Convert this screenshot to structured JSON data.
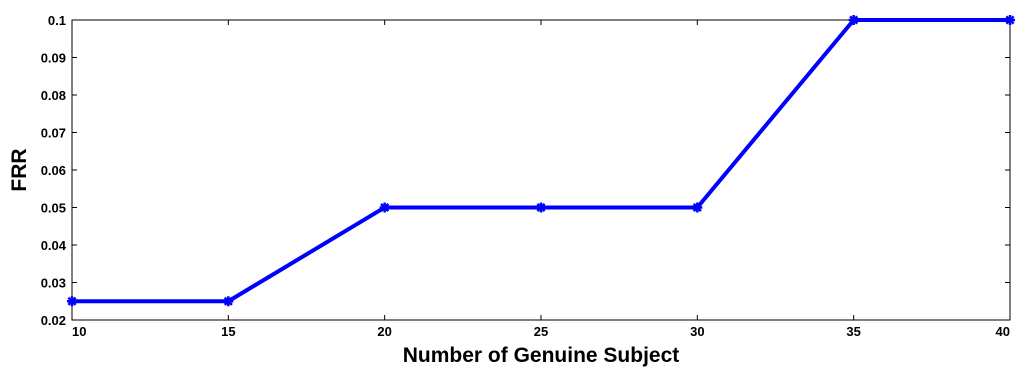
{
  "chart_data": {
    "type": "line",
    "title": "",
    "xlabel": "Number of Genuine Subject",
    "ylabel": "FRR",
    "x": [
      10,
      15,
      20,
      25,
      30,
      35,
      40
    ],
    "series": [
      {
        "values": [
          0.025,
          0.025,
          0.05,
          0.05,
          0.05,
          0.1,
          0.1
        ]
      }
    ],
    "xlim": [
      10,
      40
    ],
    "ylim": [
      0.02,
      0.1
    ],
    "xticks": [
      10,
      15,
      20,
      25,
      30,
      35,
      40
    ],
    "yticks": [
      0.02,
      0.03,
      0.04,
      0.05,
      0.06,
      0.07,
      0.08,
      0.09,
      0.1
    ],
    "xtick_labels": [
      "10",
      "15",
      "20",
      "25",
      "30",
      "35",
      "40"
    ],
    "ytick_labels": [
      "0.02",
      "0.03",
      "0.04",
      "0.05",
      "0.06",
      "0.07",
      "0.08",
      "0.09",
      "0.1"
    ],
    "grid": false,
    "legend": "none",
    "colors": {
      "line": "#0000ff",
      "axes": "#000000"
    },
    "marker": "star"
  }
}
